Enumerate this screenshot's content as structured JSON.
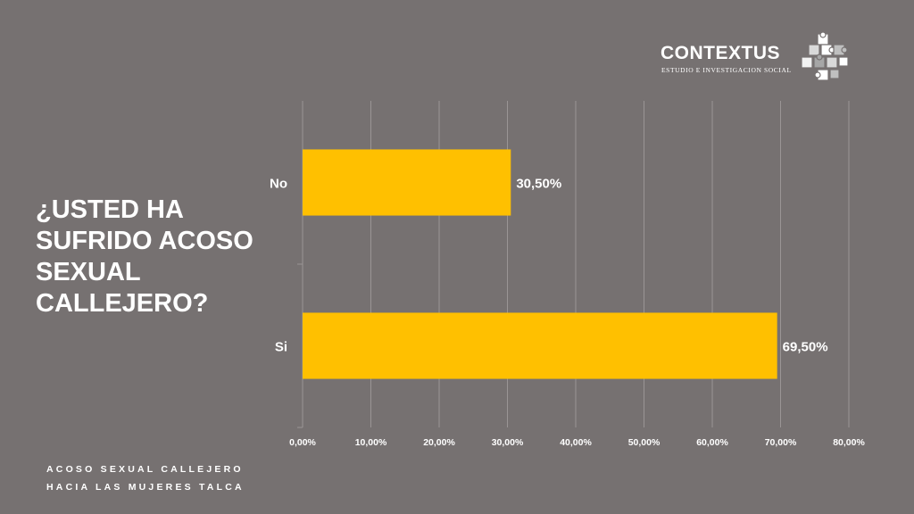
{
  "slide": {
    "question": "¿USTED HA SUFRIDO ACOSO SEXUAL CALLEJERO?",
    "footer_line1": "ACOSO SEXUAL CALLEJERO",
    "footer_line2": "HACIA LAS MUJERES TALCA"
  },
  "brand": {
    "name": "CONTEXTUS",
    "tagline": "ESTUDIO E INVESTIGACION SOCIAL",
    "icon": "puzzle-icon"
  },
  "colors": {
    "background": "#767171",
    "bar": "#FFC000",
    "text": "#FFFFFF",
    "grid": "#9A9595"
  },
  "chart_data": {
    "type": "bar",
    "orientation": "horizontal",
    "categories": [
      "No",
      "Si"
    ],
    "values": [
      30.5,
      69.5
    ],
    "data_labels": [
      "30,50%",
      "69,50%"
    ],
    "x_ticks": [
      0,
      10,
      20,
      30,
      40,
      50,
      60,
      70,
      80
    ],
    "x_tick_labels": [
      "0,00%",
      "10,00%",
      "20,00%",
      "30,00%",
      "40,00%",
      "50,00%",
      "60,00%",
      "70,00%",
      "80,00%"
    ],
    "xlim": [
      0,
      80
    ],
    "grid": true,
    "legend": "none",
    "title": "",
    "xlabel": "",
    "ylabel": ""
  }
}
